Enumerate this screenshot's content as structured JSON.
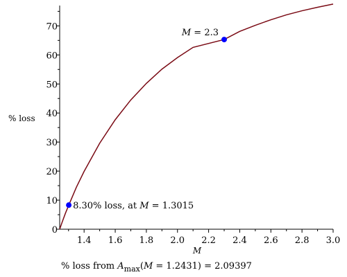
{
  "chart_data": {
    "type": "line",
    "title": "",
    "xlabel": "M",
    "ylabel": "% loss",
    "xlim": [
      1.2431,
      3.0
    ],
    "ylim": [
      0,
      77
    ],
    "x_ticks": [
      1.4,
      1.6,
      1.8,
      2.0,
      2.2,
      2.4,
      2.6,
      2.8,
      3.0
    ],
    "x_tick_labels": [
      "1.4",
      "1.6",
      "1.8",
      "2.0",
      "2.2",
      "2.4",
      "2.6",
      "2.8",
      "3.0"
    ],
    "y_ticks": [
      0,
      10,
      20,
      30,
      40,
      50,
      60,
      70
    ],
    "y_tick_labels": [
      "0",
      "10",
      "20",
      "30",
      "40",
      "50",
      "60",
      "70"
    ],
    "grid": false,
    "series_color": "#7a0a14",
    "point_color": "#0000ff",
    "series": [
      {
        "x": [
          1.2431,
          1.26,
          1.28,
          1.3015,
          1.35,
          1.4,
          1.5,
          1.6,
          1.7,
          1.8,
          1.9,
          2.0,
          2.1,
          2.2,
          2.3,
          2.4,
          2.5,
          2.6,
          2.7,
          2.8,
          2.9,
          3.0
        ],
        "y": [
          0,
          2.6,
          5.5,
          8.3,
          14.4,
          19.9,
          29.6,
          37.7,
          44.5,
          50.2,
          55.1,
          59.1,
          62.6,
          65.5,
          65.3,
          68.1,
          70.2,
          72.1,
          73.8,
          75.2,
          76.4,
          77.5
        ]
      }
    ],
    "points": [
      {
        "x": 1.3015,
        "y": 8.3,
        "label_prefix": "8.30% loss, at ",
        "label_var": "M",
        "label_suffix": " = 1.3015"
      },
      {
        "x": 2.3,
        "y": 65.3,
        "label_prefix": "",
        "label_var": "M",
        "label_suffix": " = 2.3"
      }
    ],
    "caption": {
      "prefix": "% loss from ",
      "var": "A",
      "sub": "max",
      "paren_open": "(",
      "inner_var": "M",
      "rest": " = 1.2431) = 2.09397"
    }
  }
}
